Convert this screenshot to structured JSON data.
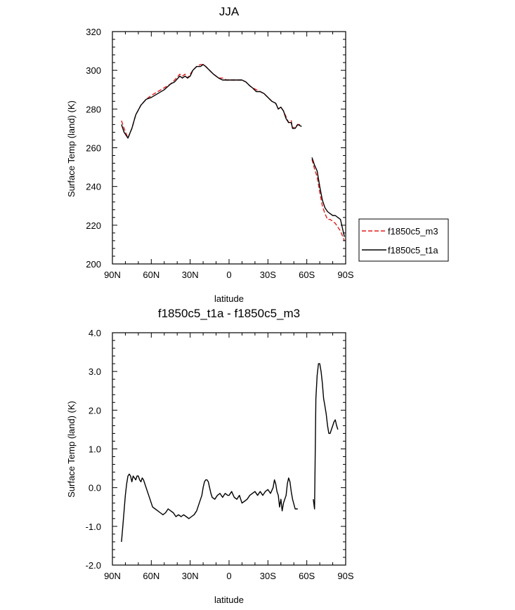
{
  "chart_data": [
    {
      "type": "line",
      "title": "JJA",
      "xlabel": "latitude",
      "ylabel": "Surface Temp (land) (K)",
      "xlim": [
        90,
        -90
      ],
      "ylim": [
        200,
        320
      ],
      "x_ticks": [
        90,
        60,
        30,
        0,
        -30,
        -60,
        -90
      ],
      "x_tick_labels": [
        "90N",
        "60N",
        "30N",
        "0",
        "30S",
        "60S",
        "90S"
      ],
      "y_ticks": [
        200,
        220,
        240,
        260,
        280,
        300,
        320
      ],
      "y_tick_labels": [
        "200",
        "220",
        "240",
        "260",
        "280",
        "300",
        "320"
      ],
      "legend_position": "right",
      "series": [
        {
          "name": "f1850c5_m3",
          "color": "#e41a1c",
          "dash": "dashed",
          "segments": [
            [
              [
                83,
                274
              ],
              [
                81,
                270
              ],
              [
                78,
                265
              ],
              [
                75,
                270
              ],
              [
                72,
                277
              ],
              [
                68,
                282
              ],
              [
                64,
                285
              ],
              [
                60,
                287
              ],
              [
                55,
                289
              ],
              [
                50,
                291
              ],
              [
                45,
                293
              ],
              [
                42,
                295
              ],
              [
                38,
                298
              ],
              [
                36,
                297
              ],
              [
                34,
                298
              ],
              [
                32,
                296
              ],
              [
                30,
                298
              ],
              [
                28,
                300
              ],
              [
                25,
                302
              ],
              [
                22,
                303
              ],
              [
                20,
                303
              ],
              [
                18,
                302
              ],
              [
                15,
                300
              ],
              [
                12,
                298
              ],
              [
                8,
                296
              ],
              [
                5,
                296
              ],
              [
                2,
                295
              ],
              [
                0,
                295
              ],
              [
                -3,
                295
              ],
              [
                -6,
                295
              ],
              [
                -10,
                295
              ],
              [
                -13,
                294
              ],
              [
                -16,
                292
              ],
              [
                -18,
                291
              ],
              [
                -21,
                290
              ],
              [
                -24,
                289
              ],
              [
                -27,
                288
              ],
              [
                -30,
                286
              ],
              [
                -33,
                284
              ],
              [
                -36,
                283
              ],
              [
                -38,
                280
              ],
              [
                -40,
                281
              ],
              [
                -42,
                279
              ],
              [
                -44,
                276
              ],
              [
                -46,
                273
              ],
              [
                -48,
                274
              ],
              [
                -49,
                270
              ],
              [
                -51,
                271
              ],
              [
                -53,
                272
              ],
              [
                -56,
                272
              ]
            ],
            [
              [
                -64,
                254
              ],
              [
                -66,
                249
              ],
              [
                -68,
                245
              ],
              [
                -70,
                237
              ],
              [
                -72,
                230
              ],
              [
                -74,
                226
              ],
              [
                -76,
                223
              ],
              [
                -78,
                223
              ],
              [
                -80,
                222
              ],
              [
                -82,
                221
              ],
              [
                -84,
                219
              ],
              [
                -86,
                217
              ],
              [
                -89,
                212
              ]
            ]
          ]
        },
        {
          "name": "f1850c5_t1a",
          "color": "#000000",
          "dash": "solid",
          "segments": [
            [
              [
                83,
                272
              ],
              [
                81,
                268
              ],
              [
                78,
                265
              ],
              [
                75,
                270
              ],
              [
                72,
                277
              ],
              [
                68,
                282
              ],
              [
                64,
                285
              ],
              [
                60,
                286
              ],
              [
                55,
                288
              ],
              [
                50,
                290
              ],
              [
                45,
                293
              ],
              [
                42,
                294
              ],
              [
                38,
                297
              ],
              [
                36,
                296
              ],
              [
                34,
                297
              ],
              [
                32,
                296
              ],
              [
                30,
                297
              ],
              [
                28,
                300
              ],
              [
                25,
                302
              ],
              [
                22,
                302
              ],
              [
                20,
                303
              ],
              [
                18,
                302
              ],
              [
                15,
                300
              ],
              [
                12,
                298
              ],
              [
                8,
                296
              ],
              [
                5,
                295
              ],
              [
                2,
                295
              ],
              [
                0,
                295
              ],
              [
                -3,
                295
              ],
              [
                -6,
                295
              ],
              [
                -10,
                295
              ],
              [
                -13,
                294
              ],
              [
                -16,
                292
              ],
              [
                -18,
                291
              ],
              [
                -21,
                289
              ],
              [
                -24,
                289
              ],
              [
                -27,
                288
              ],
              [
                -30,
                286
              ],
              [
                -33,
                284
              ],
              [
                -36,
                283
              ],
              [
                -38,
                280
              ],
              [
                -40,
                281
              ],
              [
                -42,
                279
              ],
              [
                -44,
                275
              ],
              [
                -46,
                273
              ],
              [
                -48,
                273
              ],
              [
                -49,
                270
              ],
              [
                -51,
                270
              ],
              [
                -53,
                272
              ],
              [
                -56,
                271
              ]
            ],
            [
              [
                -64,
                255
              ],
              [
                -66,
                251
              ],
              [
                -68,
                248
              ],
              [
                -70,
                240
              ],
              [
                -72,
                233
              ],
              [
                -74,
                229
              ],
              [
                -76,
                227
              ],
              [
                -78,
                226
              ],
              [
                -80,
                225
              ],
              [
                -82,
                225
              ],
              [
                -84,
                224
              ],
              [
                -86,
                223
              ],
              [
                -89,
                214
              ]
            ]
          ]
        }
      ]
    },
    {
      "type": "line",
      "title": "f1850c5_t1a - f1850c5_m3",
      "xlabel": "latitude",
      "ylabel": "Surface Temp (land) (K)",
      "xlim": [
        90,
        -90
      ],
      "ylim": [
        -2,
        4
      ],
      "x_ticks": [
        90,
        60,
        30,
        0,
        -30,
        -60,
        -90
      ],
      "x_tick_labels": [
        "90N",
        "60N",
        "30N",
        "0",
        "30S",
        "60S",
        "90S"
      ],
      "y_ticks": [
        -2,
        -1,
        0,
        1,
        2,
        3,
        4
      ],
      "y_tick_labels": [
        "-2.0",
        "-1.0",
        "0.0",
        "1.0",
        "2.0",
        "3.0",
        "4.0"
      ],
      "series": [
        {
          "color": "#000000",
          "dash": "solid",
          "segments": [
            [
              [
                83,
                -1.4
              ],
              [
                82,
                -1.0
              ],
              [
                81,
                -0.6
              ],
              [
                80,
                -0.2
              ],
              [
                79,
                0.1
              ],
              [
                78,
                0.3
              ],
              [
                77,
                0.35
              ],
              [
                76,
                0.3
              ],
              [
                75,
                0.15
              ],
              [
                74,
                0.3
              ],
              [
                73,
                0.25
              ],
              [
                72,
                0.2
              ],
              [
                71,
                0.3
              ],
              [
                70,
                0.3
              ],
              [
                69,
                0.2
              ],
              [
                68,
                0.15
              ],
              [
                67,
                0.25
              ],
              [
                66,
                0.2
              ],
              [
                65,
                0.1
              ],
              [
                63,
                -0.1
              ],
              [
                61,
                -0.3
              ],
              [
                59,
                -0.5
              ],
              [
                57,
                -0.55
              ],
              [
                55,
                -0.6
              ],
              [
                53,
                -0.65
              ],
              [
                51,
                -0.7
              ],
              [
                49,
                -0.65
              ],
              [
                47,
                -0.55
              ],
              [
                45,
                -0.6
              ],
              [
                43,
                -0.65
              ],
              [
                41,
                -0.75
              ],
              [
                39,
                -0.7
              ],
              [
                37,
                -0.75
              ],
              [
                35,
                -0.7
              ],
              [
                33,
                -0.75
              ],
              [
                31,
                -0.8
              ],
              [
                29,
                -0.75
              ],
              [
                27,
                -0.7
              ],
              [
                25,
                -0.6
              ],
              [
                23,
                -0.4
              ],
              [
                21,
                -0.2
              ],
              [
                20,
                0.0
              ],
              [
                19,
                0.15
              ],
              [
                18,
                0.2
              ],
              [
                17,
                0.2
              ],
              [
                16,
                0.15
              ],
              [
                15,
                0.0
              ],
              [
                14,
                -0.15
              ],
              [
                13,
                -0.25
              ],
              [
                11,
                -0.3
              ],
              [
                9,
                -0.2
              ],
              [
                7,
                -0.15
              ],
              [
                5,
                -0.25
              ],
              [
                3,
                -0.15
              ],
              [
                1,
                -0.2
              ],
              [
                0,
                -0.2
              ],
              [
                -2,
                -0.1
              ],
              [
                -4,
                -0.25
              ],
              [
                -6,
                -0.3
              ],
              [
                -8,
                -0.2
              ],
              [
                -10,
                -0.4
              ],
              [
                -12,
                -0.35
              ],
              [
                -14,
                -0.3
              ],
              [
                -16,
                -0.2
              ],
              [
                -18,
                -0.15
              ],
              [
                -20,
                -0.1
              ],
              [
                -22,
                -0.2
              ],
              [
                -24,
                -0.1
              ],
              [
                -26,
                -0.2
              ],
              [
                -28,
                -0.1
              ],
              [
                -30,
                -0.05
              ],
              [
                -32,
                -0.15
              ],
              [
                -34,
                0.0
              ],
              [
                -35,
                0.2
              ],
              [
                -36,
                0.1
              ],
              [
                -37,
                -0.1
              ],
              [
                -38,
                -0.2
              ],
              [
                -39,
                -0.5
              ],
              [
                -40,
                -0.3
              ],
              [
                -41,
                -0.6
              ],
              [
                -42,
                -0.4
              ],
              [
                -43,
                -0.3
              ],
              [
                -44,
                -0.2
              ],
              [
                -45,
                0.1
              ],
              [
                -46,
                0.25
              ],
              [
                -47,
                0.15
              ],
              [
                -48,
                -0.1
              ],
              [
                -49,
                -0.3
              ],
              [
                -51,
                -0.55
              ],
              [
                -53,
                -0.55
              ]
            ],
            [
              [
                -65,
                -0.3
              ],
              [
                -66,
                -0.55
              ],
              [
                -67,
                2.3
              ],
              [
                -68,
                2.9
              ],
              [
                -69,
                3.2
              ],
              [
                -70,
                3.2
              ],
              [
                -71,
                3.0
              ],
              [
                -72,
                2.7
              ],
              [
                -73,
                2.3
              ],
              [
                -74,
                2.1
              ],
              [
                -75,
                1.9
              ],
              [
                -76,
                1.6
              ],
              [
                -77,
                1.4
              ],
              [
                -78,
                1.4
              ],
              [
                -79,
                1.5
              ],
              [
                -80,
                1.6
              ],
              [
                -81,
                1.7
              ],
              [
                -82,
                1.75
              ],
              [
                -83,
                1.6
              ],
              [
                -84,
                1.5
              ]
            ]
          ]
        }
      ]
    }
  ]
}
